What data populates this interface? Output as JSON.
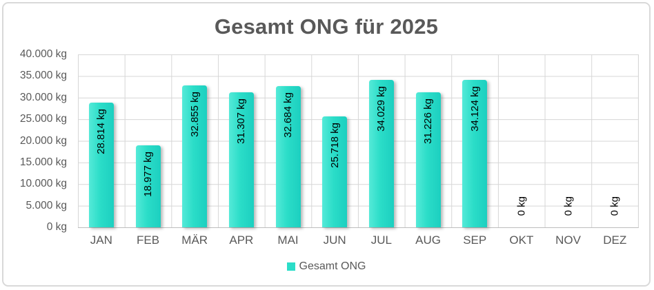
{
  "chart_data": {
    "type": "bar",
    "title": "Gesamt ONG für 2025",
    "categories": [
      "JAN",
      "FEB",
      "MÄR",
      "APR",
      "MAI",
      "JUN",
      "JUL",
      "AUG",
      "SEP",
      "OKT",
      "NOV",
      "DEZ"
    ],
    "series": [
      {
        "name": "Gesamt ONG",
        "values": [
          28814,
          18977,
          32855,
          31307,
          32684,
          25718,
          34029,
          31226,
          34124,
          0,
          0,
          0
        ],
        "data_labels": [
          "28.814 kg",
          "18.977 kg",
          "32.855 kg",
          "31.307 kg",
          "32.684 kg",
          "25.718 kg",
          "34.029 kg",
          "31.226 kg",
          "34.124 kg",
          "0 kg",
          "0 kg",
          "0 kg"
        ]
      }
    ],
    "y_ticks": [
      "40.000 kg",
      "35.000 kg",
      "30.000 kg",
      "25.000 kg",
      "20.000 kg",
      "15.000 kg",
      "10.000 kg",
      "5.000 kg",
      "0 kg"
    ],
    "ylim": [
      0,
      40000
    ],
    "unit": "kg",
    "grid": true,
    "legend_position": "bottom",
    "data_label_rotation_deg": 90
  },
  "legend": {
    "label": "Gesamt ONG"
  },
  "colors": {
    "bar_main": "#2BDDC8",
    "bar_light": "#55EAD8",
    "bar_dark": "#1CCFC0",
    "grid": "#D6D6D6",
    "axis_text": "#595959",
    "label_text": "#000000",
    "border": "#D9D9D9"
  }
}
